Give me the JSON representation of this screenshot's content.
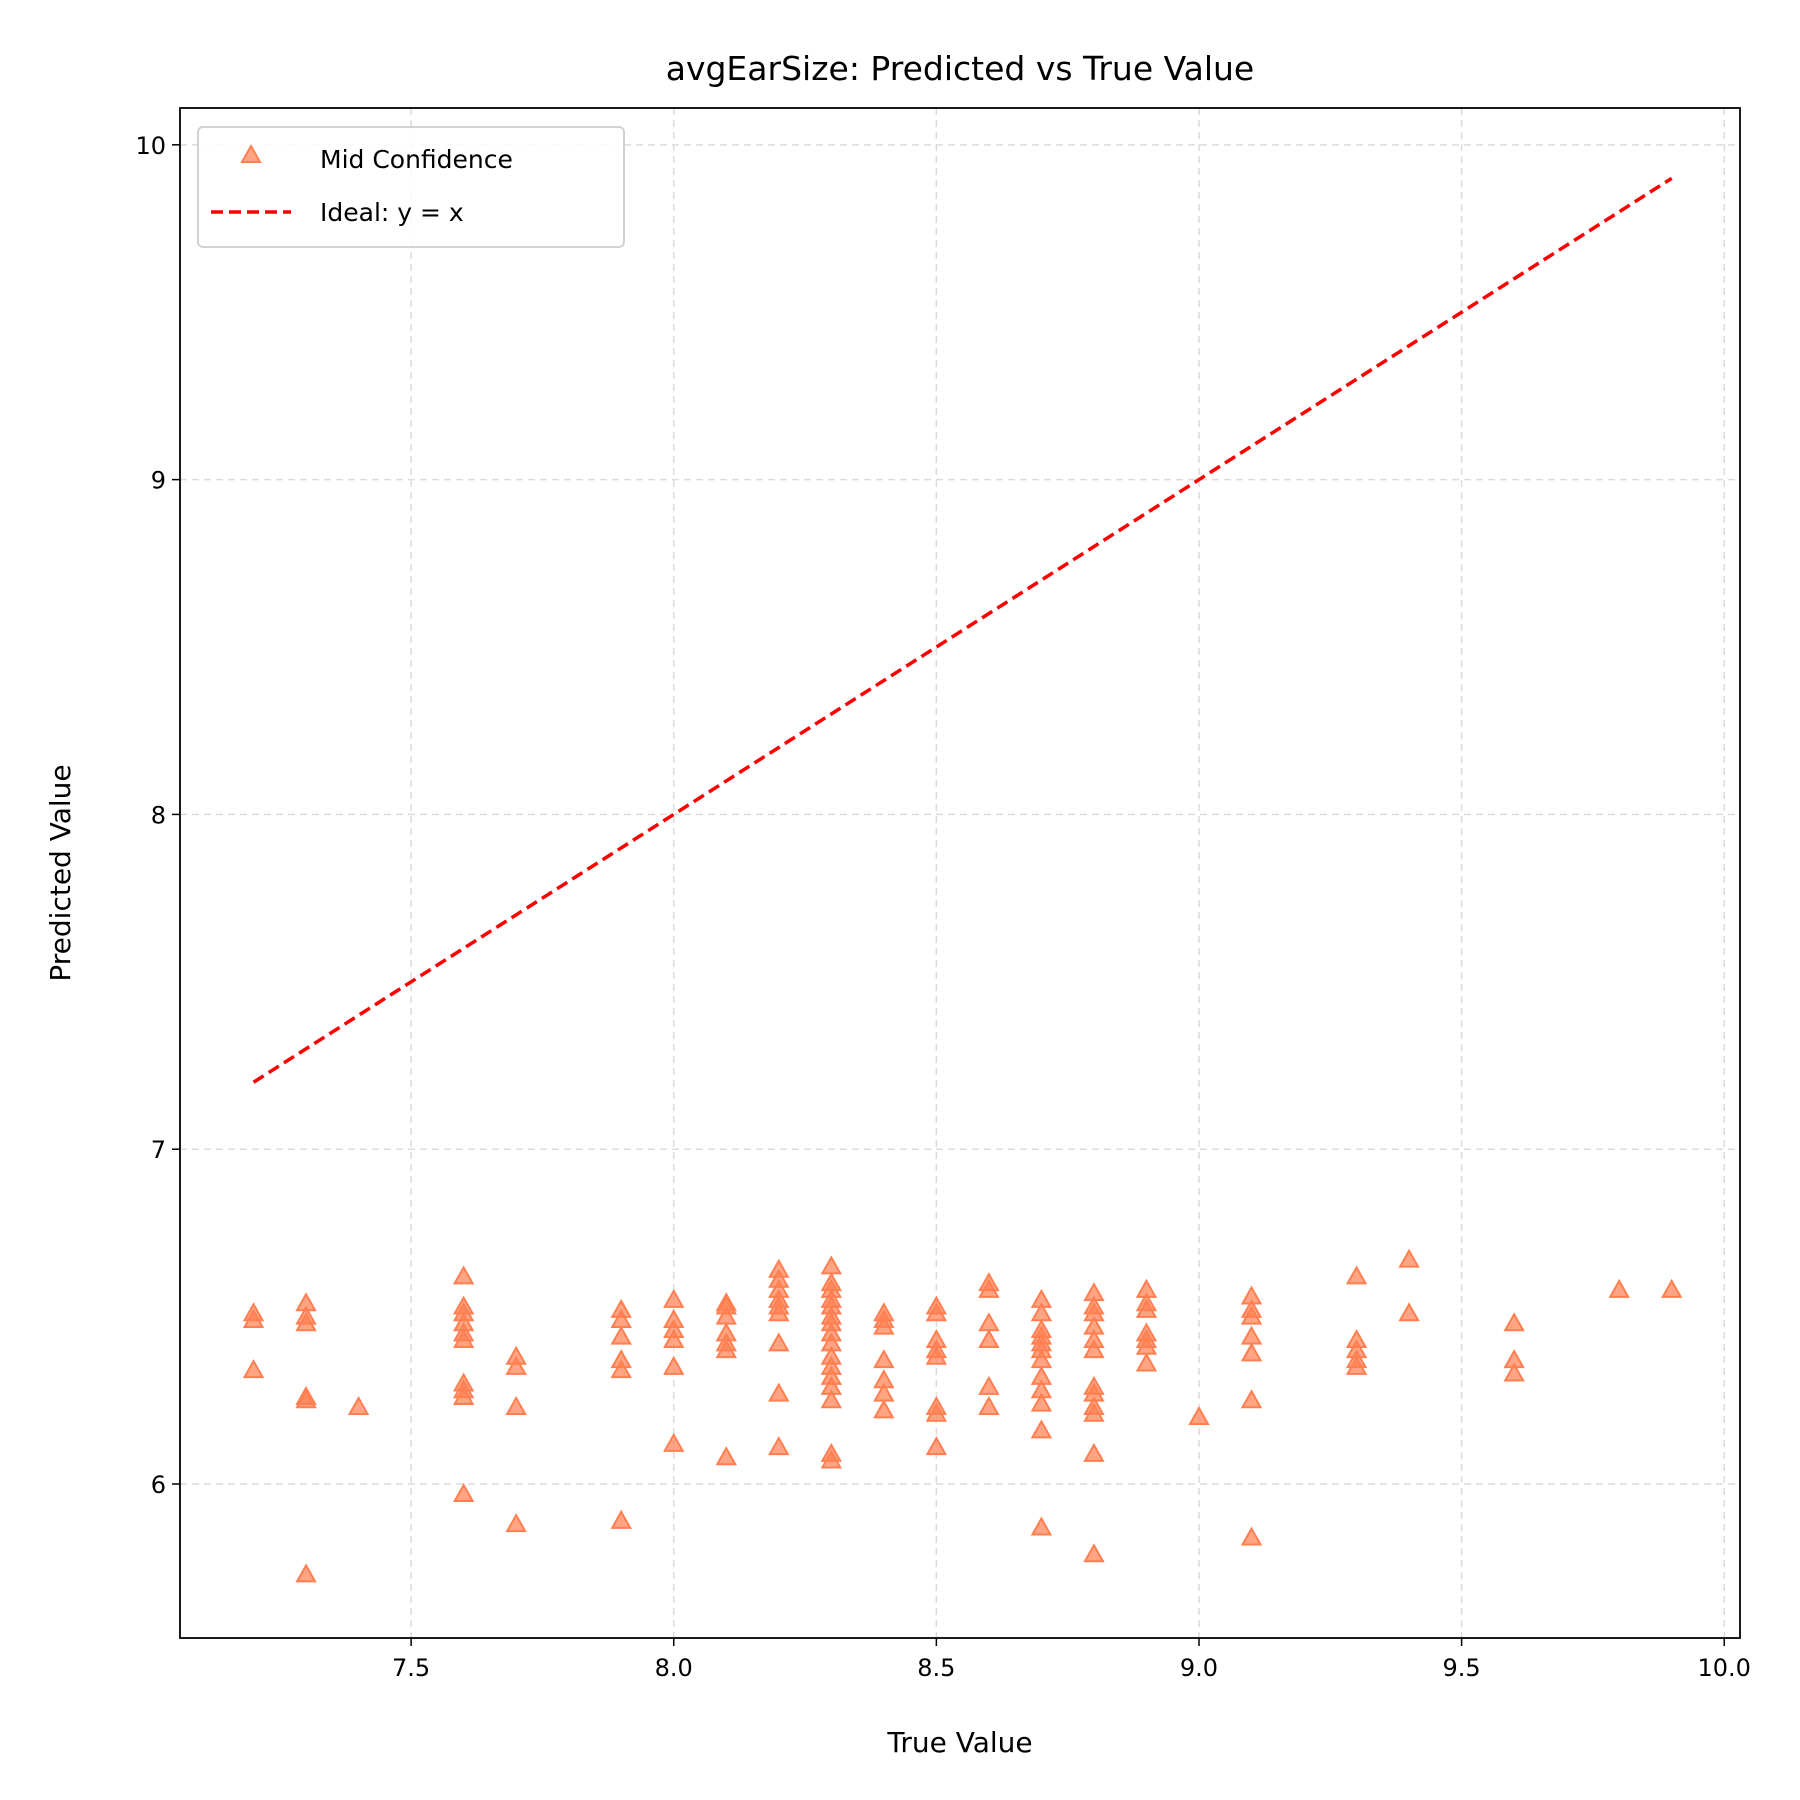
{
  "chart_data": {
    "type": "scatter",
    "title": "avgEarSize: Predicted vs True Value",
    "xlabel": "True Value",
    "ylabel": "Predicted Value",
    "xlim": [
      7.06,
      10.03
    ],
    "ylim": [
      5.54,
      10.11
    ],
    "grid": true,
    "legend_position": "top-left",
    "xticks": [
      {
        "value": 7.5,
        "label": "7.5"
      },
      {
        "value": 8.0,
        "label": "8.0"
      },
      {
        "value": 8.5,
        "label": "8.5"
      },
      {
        "value": 9.0,
        "label": "9.0"
      },
      {
        "value": 9.5,
        "label": "9.5"
      },
      {
        "value": 10.0,
        "label": "10.0"
      }
    ],
    "yticks": [
      {
        "value": 6,
        "label": "6"
      },
      {
        "value": 7,
        "label": "7"
      },
      {
        "value": 8,
        "label": "8"
      },
      {
        "value": 9,
        "label": "9"
      },
      {
        "value": 10,
        "label": "10"
      }
    ],
    "series": [
      {
        "name": "Mid Confidence",
        "kind": "scatter",
        "marker": "triangle-up",
        "color": "#ff7f50",
        "points": [
          [
            7.2,
            6.51
          ],
          [
            7.2,
            6.49
          ],
          [
            7.2,
            6.34
          ],
          [
            7.3,
            6.54
          ],
          [
            7.3,
            6.5
          ],
          [
            7.3,
            6.48
          ],
          [
            7.3,
            6.26
          ],
          [
            7.3,
            6.25
          ],
          [
            7.3,
            5.73
          ],
          [
            7.4,
            6.23
          ],
          [
            7.6,
            6.62
          ],
          [
            7.6,
            6.53
          ],
          [
            7.6,
            6.51
          ],
          [
            7.6,
            6.48
          ],
          [
            7.6,
            6.45
          ],
          [
            7.6,
            6.43
          ],
          [
            7.6,
            6.3
          ],
          [
            7.6,
            6.28
          ],
          [
            7.6,
            6.26
          ],
          [
            7.6,
            5.97
          ],
          [
            7.7,
            6.38
          ],
          [
            7.7,
            6.35
          ],
          [
            7.7,
            6.23
          ],
          [
            7.7,
            5.88
          ],
          [
            7.9,
            6.52
          ],
          [
            7.9,
            6.49
          ],
          [
            7.9,
            6.44
          ],
          [
            7.9,
            6.37
          ],
          [
            7.9,
            6.34
          ],
          [
            7.9,
            5.89
          ],
          [
            8.0,
            6.55
          ],
          [
            8.0,
            6.49
          ],
          [
            8.0,
            6.46
          ],
          [
            8.0,
            6.43
          ],
          [
            8.0,
            6.35
          ],
          [
            8.0,
            6.12
          ],
          [
            8.1,
            6.54
          ],
          [
            8.1,
            6.53
          ],
          [
            8.1,
            6.5
          ],
          [
            8.1,
            6.45
          ],
          [
            8.1,
            6.42
          ],
          [
            8.1,
            6.4
          ],
          [
            8.1,
            6.08
          ],
          [
            8.2,
            6.64
          ],
          [
            8.2,
            6.61
          ],
          [
            8.2,
            6.58
          ],
          [
            8.2,
            6.55
          ],
          [
            8.2,
            6.53
          ],
          [
            8.2,
            6.51
          ],
          [
            8.2,
            6.42
          ],
          [
            8.2,
            6.27
          ],
          [
            8.2,
            6.11
          ],
          [
            8.3,
            6.65
          ],
          [
            8.3,
            6.6
          ],
          [
            8.3,
            6.58
          ],
          [
            8.3,
            6.55
          ],
          [
            8.3,
            6.53
          ],
          [
            8.3,
            6.5
          ],
          [
            8.3,
            6.48
          ],
          [
            8.3,
            6.45
          ],
          [
            8.3,
            6.42
          ],
          [
            8.3,
            6.38
          ],
          [
            8.3,
            6.35
          ],
          [
            8.3,
            6.32
          ],
          [
            8.3,
            6.29
          ],
          [
            8.3,
            6.25
          ],
          [
            8.3,
            6.09
          ],
          [
            8.3,
            6.07
          ],
          [
            8.4,
            6.51
          ],
          [
            8.4,
            6.49
          ],
          [
            8.4,
            6.47
          ],
          [
            8.4,
            6.37
          ],
          [
            8.4,
            6.31
          ],
          [
            8.4,
            6.27
          ],
          [
            8.4,
            6.22
          ],
          [
            8.5,
            6.53
          ],
          [
            8.5,
            6.51
          ],
          [
            8.5,
            6.43
          ],
          [
            8.5,
            6.4
          ],
          [
            8.5,
            6.38
          ],
          [
            8.5,
            6.23
          ],
          [
            8.5,
            6.21
          ],
          [
            8.5,
            6.11
          ],
          [
            8.6,
            6.6
          ],
          [
            8.6,
            6.58
          ],
          [
            8.6,
            6.48
          ],
          [
            8.6,
            6.43
          ],
          [
            8.6,
            6.29
          ],
          [
            8.6,
            6.23
          ],
          [
            8.7,
            6.55
          ],
          [
            8.7,
            6.51
          ],
          [
            8.7,
            6.46
          ],
          [
            8.7,
            6.44
          ],
          [
            8.7,
            6.42
          ],
          [
            8.7,
            6.4
          ],
          [
            8.7,
            6.37
          ],
          [
            8.7,
            6.32
          ],
          [
            8.7,
            6.28
          ],
          [
            8.7,
            6.24
          ],
          [
            8.7,
            6.16
          ],
          [
            8.7,
            5.87
          ],
          [
            8.8,
            6.57
          ],
          [
            8.8,
            6.53
          ],
          [
            8.8,
            6.51
          ],
          [
            8.8,
            6.47
          ],
          [
            8.8,
            6.43
          ],
          [
            8.8,
            6.4
          ],
          [
            8.8,
            6.29
          ],
          [
            8.8,
            6.27
          ],
          [
            8.8,
            6.23
          ],
          [
            8.8,
            6.21
          ],
          [
            8.8,
            6.09
          ],
          [
            8.8,
            5.79
          ],
          [
            8.9,
            6.58
          ],
          [
            8.9,
            6.54
          ],
          [
            8.9,
            6.52
          ],
          [
            8.9,
            6.45
          ],
          [
            8.9,
            6.43
          ],
          [
            8.9,
            6.41
          ],
          [
            8.9,
            6.36
          ],
          [
            9.0,
            6.2
          ],
          [
            9.1,
            6.56
          ],
          [
            9.1,
            6.52
          ],
          [
            9.1,
            6.5
          ],
          [
            9.1,
            6.44
          ],
          [
            9.1,
            6.39
          ],
          [
            9.1,
            6.25
          ],
          [
            9.1,
            5.84
          ],
          [
            9.3,
            6.62
          ],
          [
            9.3,
            6.43
          ],
          [
            9.3,
            6.4
          ],
          [
            9.3,
            6.37
          ],
          [
            9.3,
            6.35
          ],
          [
            9.4,
            6.67
          ],
          [
            9.4,
            6.51
          ],
          [
            9.6,
            6.48
          ],
          [
            9.6,
            6.37
          ],
          [
            9.6,
            6.33
          ],
          [
            9.8,
            6.58
          ],
          [
            9.9,
            6.58
          ]
        ]
      },
      {
        "name": "Ideal: y = x",
        "kind": "line",
        "style": "dashed",
        "color": "#ff0000",
        "x": [
          7.2,
          9.9
        ],
        "y": [
          7.2,
          9.9
        ]
      }
    ]
  }
}
